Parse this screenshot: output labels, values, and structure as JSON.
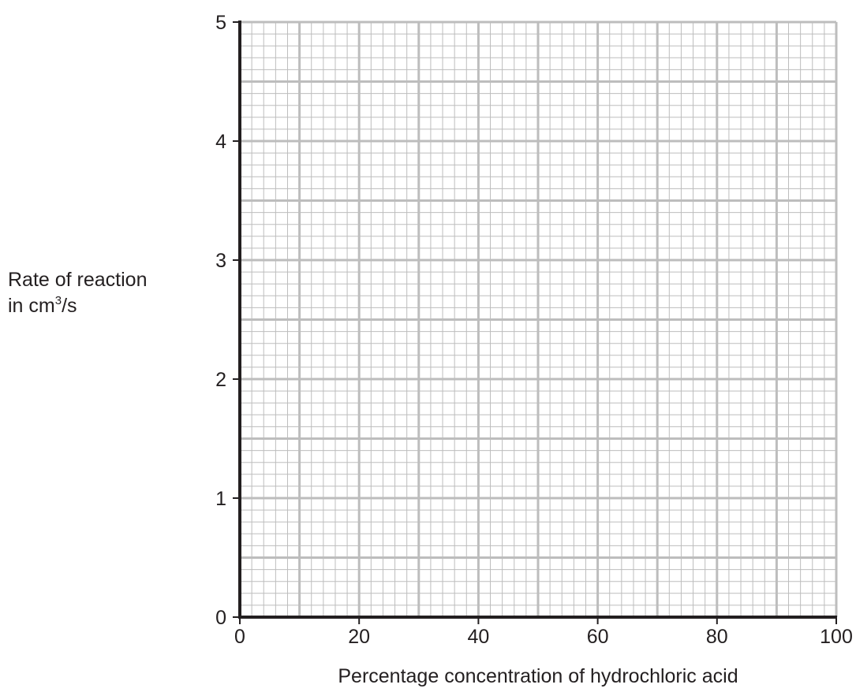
{
  "chart_data": {
    "type": "scatter",
    "title": "",
    "xlabel": "Percentage concentration of hydrochloric acid",
    "ylabel_line1": "Rate of reaction",
    "ylabel_line2_prefix": "in cm",
    "ylabel_line2_sup": "3",
    "ylabel_line2_suffix": "/s",
    "xlim": [
      0,
      100
    ],
    "ylim": [
      0,
      5
    ],
    "x_ticks": [
      "0",
      "20",
      "40",
      "60",
      "80",
      "100"
    ],
    "y_ticks": [
      "0",
      "1",
      "2",
      "3",
      "4",
      "5"
    ],
    "grid": {
      "major_x_step": 10,
      "minor_x_step": 2,
      "major_y_step": 0.5,
      "minor_y_step": 0.1
    },
    "series": [],
    "colors": {
      "axis": "#231f20",
      "major_grid": "#bdbdbd",
      "minor_grid": "#bdbdbd",
      "text": "#231f20"
    }
  }
}
